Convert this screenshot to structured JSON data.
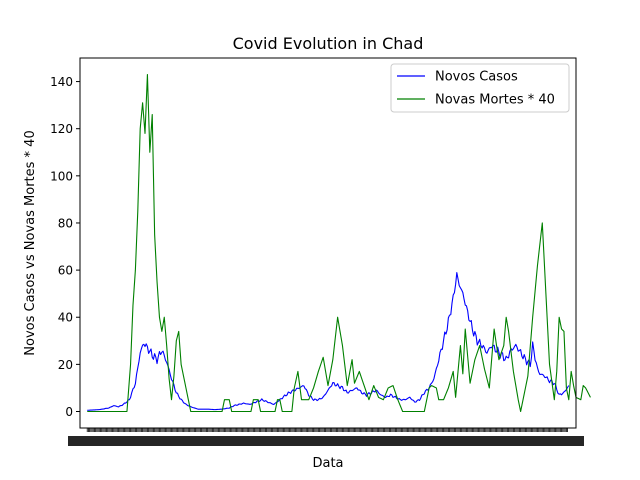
{
  "chart_data": {
    "type": "line",
    "title": "Covid Evolution in Chad",
    "xlabel": "Data",
    "ylabel": "Novos Casos vs Novas Mortes * 40",
    "ylim": [
      -7,
      150
    ],
    "yticks": [
      0,
      20,
      40,
      60,
      80,
      100,
      120,
      140
    ],
    "legend_position": "top-right",
    "grid": false,
    "x_count": 400,
    "series": [
      {
        "name": "Novos Casos",
        "color": "#0000ff",
        "keypoints": [
          [
            0,
            0.5
          ],
          [
            10,
            0.8
          ],
          [
            18,
            1.5
          ],
          [
            22,
            2.5
          ],
          [
            26,
            2
          ],
          [
            30,
            3
          ],
          [
            35,
            5
          ],
          [
            40,
            12
          ],
          [
            44,
            25
          ],
          [
            47,
            29
          ],
          [
            50,
            27
          ],
          [
            54,
            24
          ],
          [
            58,
            22
          ],
          [
            62,
            26
          ],
          [
            66,
            21
          ],
          [
            70,
            14
          ],
          [
            74,
            8
          ],
          [
            78,
            5
          ],
          [
            82,
            3
          ],
          [
            86,
            2
          ],
          [
            92,
            1
          ],
          [
            100,
            1
          ],
          [
            106,
            0.8
          ],
          [
            112,
            1
          ],
          [
            118,
            1.5
          ],
          [
            122,
            2.5
          ],
          [
            126,
            3
          ],
          [
            130,
            3.5
          ],
          [
            135,
            3
          ],
          [
            140,
            4
          ],
          [
            145,
            5
          ],
          [
            150,
            4
          ],
          [
            155,
            3
          ],
          [
            160,
            5
          ],
          [
            165,
            7
          ],
          [
            168,
            8
          ],
          [
            172,
            9
          ],
          [
            176,
            10
          ],
          [
            180,
            11
          ],
          [
            184,
            7
          ],
          [
            188,
            5
          ],
          [
            192,
            5
          ],
          [
            196,
            6
          ],
          [
            200,
            9
          ],
          [
            204,
            12
          ],
          [
            208,
            11
          ],
          [
            212,
            10
          ],
          [
            216,
            8
          ],
          [
            220,
            9
          ],
          [
            224,
            10
          ],
          [
            228,
            8
          ],
          [
            232,
            7
          ],
          [
            236,
            8
          ],
          [
            240,
            9
          ],
          [
            244,
            7
          ],
          [
            248,
            6
          ],
          [
            252,
            7
          ],
          [
            256,
            6
          ],
          [
            260,
            5
          ],
          [
            264,
            5
          ],
          [
            268,
            6
          ],
          [
            272,
            4
          ],
          [
            276,
            5
          ],
          [
            280,
            8
          ],
          [
            284,
            10
          ],
          [
            288,
            14
          ],
          [
            292,
            22
          ],
          [
            296,
            30
          ],
          [
            300,
            38
          ],
          [
            304,
            48
          ],
          [
            307,
            58
          ],
          [
            309,
            54
          ],
          [
            312,
            50
          ],
          [
            316,
            42
          ],
          [
            320,
            35
          ],
          [
            324,
            30
          ],
          [
            328,
            28
          ],
          [
            332,
            25
          ],
          [
            336,
            28
          ],
          [
            340,
            26
          ],
          [
            344,
            24
          ],
          [
            348,
            22
          ],
          [
            352,
            26
          ],
          [
            356,
            28
          ],
          [
            360,
            25
          ],
          [
            364,
            22
          ],
          [
            368,
            20
          ],
          [
            370,
            28
          ],
          [
            372,
            23
          ],
          [
            374,
            18
          ],
          [
            376,
            16
          ],
          [
            380,
            15
          ],
          [
            384,
            13
          ],
          [
            388,
            12
          ],
          [
            392,
            7
          ],
          [
            396,
            8
          ],
          [
            400,
            11
          ]
        ]
      },
      {
        "name": "Novas Mortes * 40",
        "color": "#008000",
        "keypoints": [
          [
            0,
            0
          ],
          [
            33,
            0
          ],
          [
            36,
            20
          ],
          [
            38,
            45
          ],
          [
            40,
            60
          ],
          [
            42,
            85
          ],
          [
            44,
            120
          ],
          [
            46,
            131
          ],
          [
            48,
            118
          ],
          [
            50,
            143
          ],
          [
            52,
            110
          ],
          [
            54,
            126
          ],
          [
            56,
            75
          ],
          [
            58,
            55
          ],
          [
            60,
            40
          ],
          [
            62,
            34
          ],
          [
            64,
            40
          ],
          [
            66,
            28
          ],
          [
            68,
            14
          ],
          [
            70,
            5
          ],
          [
            72,
            15
          ],
          [
            74,
            30
          ],
          [
            76,
            34
          ],
          [
            78,
            20
          ],
          [
            80,
            15
          ],
          [
            82,
            10
          ],
          [
            84,
            5
          ],
          [
            86,
            0
          ],
          [
            90,
            0
          ],
          [
            100,
            0
          ],
          [
            112,
            0
          ],
          [
            114,
            5
          ],
          [
            118,
            5
          ],
          [
            120,
            0
          ],
          [
            136,
            0
          ],
          [
            138,
            5
          ],
          [
            142,
            5
          ],
          [
            144,
            0
          ],
          [
            156,
            0
          ],
          [
            158,
            5
          ],
          [
            160,
            5
          ],
          [
            162,
            0
          ],
          [
            170,
            0
          ],
          [
            172,
            10
          ],
          [
            175,
            17
          ],
          [
            178,
            5
          ],
          [
            184,
            5
          ],
          [
            188,
            10
          ],
          [
            192,
            17
          ],
          [
            196,
            23
          ],
          [
            200,
            11
          ],
          [
            204,
            22
          ],
          [
            208,
            40
          ],
          [
            212,
            28
          ],
          [
            216,
            11
          ],
          [
            220,
            22
          ],
          [
            222,
            12
          ],
          [
            226,
            17
          ],
          [
            230,
            11
          ],
          [
            234,
            5
          ],
          [
            238,
            11
          ],
          [
            242,
            6
          ],
          [
            246,
            5
          ],
          [
            250,
            10
          ],
          [
            254,
            11
          ],
          [
            258,
            5
          ],
          [
            262,
            0
          ],
          [
            280,
            0
          ],
          [
            284,
            10
          ],
          [
            286,
            11
          ],
          [
            290,
            10
          ],
          [
            292,
            5
          ],
          [
            296,
            5
          ],
          [
            300,
            10
          ],
          [
            304,
            17
          ],
          [
            306,
            6
          ],
          [
            310,
            28
          ],
          [
            312,
            16
          ],
          [
            314,
            35
          ],
          [
            318,
            12
          ],
          [
            322,
            22
          ],
          [
            326,
            28
          ],
          [
            330,
            18
          ],
          [
            334,
            10
          ],
          [
            338,
            35
          ],
          [
            340,
            28
          ],
          [
            342,
            22
          ],
          [
            346,
            28
          ],
          [
            348,
            40
          ],
          [
            350,
            34
          ],
          [
            354,
            17
          ],
          [
            358,
            5
          ],
          [
            360,
            0
          ],
          [
            362,
            5
          ],
          [
            366,
            15
          ],
          [
            370,
            40
          ],
          [
            374,
            62
          ],
          [
            378,
            80
          ],
          [
            380,
            60
          ],
          [
            384,
            20
          ],
          [
            388,
            5
          ],
          [
            390,
            17
          ],
          [
            392,
            40
          ],
          [
            394,
            35
          ],
          [
            396,
            34
          ],
          [
            398,
            10
          ],
          [
            400,
            5
          ],
          [
            402,
            17
          ],
          [
            404,
            11
          ],
          [
            406,
            6
          ],
          [
            410,
            5
          ],
          [
            412,
            11
          ],
          [
            414,
            10
          ],
          [
            418,
            6
          ]
        ]
      }
    ]
  }
}
